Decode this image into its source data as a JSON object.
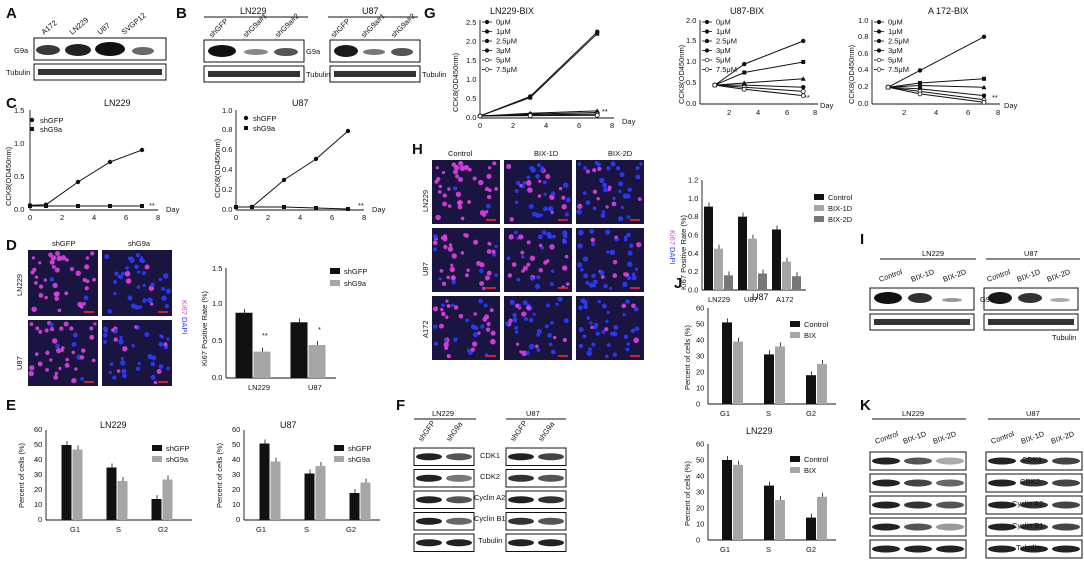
{
  "panel_labels": [
    "A",
    "B",
    "C",
    "D",
    "E",
    "F",
    "G",
    "H",
    "I",
    "J",
    "K"
  ],
  "common": {
    "tubulin": "Tubulin",
    "g9a": "G9a",
    "ki67": "Ki67",
    "dapi": "DAPI",
    "day": "Day"
  },
  "colors": {
    "black": "#111111",
    "gray": "#a6a6a6",
    "dapi_blue": "#2a3cff",
    "ki67_magenta": "#e040e0",
    "field_bg": "#1a1440"
  },
  "panel_a": {
    "cell_lines": [
      "A172",
      "LN229",
      "U87",
      "SVGP12"
    ]
  },
  "panel_b": {
    "groups": [
      {
        "title": "LN229",
        "lanes": [
          "shGFP",
          "shG9a#1",
          "shG9a#2"
        ]
      },
      {
        "title": "U87",
        "lanes": [
          "shGFP",
          "shG9a#1",
          "shG9a#2"
        ]
      }
    ]
  },
  "panel_c": {
    "ylabel": "CCK8(OD450nm)",
    "legend": [
      "shGFP",
      "shG9a"
    ],
    "charts": [
      {
        "title": "LN229",
        "yticks": [
          "0.0",
          "0.5",
          "1.0",
          "1.5"
        ],
        "xticks": [
          "0",
          "2",
          "4",
          "6",
          "8"
        ],
        "sig": "**"
      },
      {
        "title": "U87",
        "yticks": [
          "0.0",
          "0.2",
          "0.4",
          "0.6",
          "0.8",
          "1.0"
        ],
        "xticks": [
          "0",
          "2",
          "4",
          "6",
          "8"
        ],
        "sig": "**"
      }
    ]
  },
  "panel_d": {
    "columns": [
      "shGFP",
      "shG9a"
    ],
    "rows": [
      "LN229",
      "U87"
    ],
    "ylabel": "Ki67 Positive Rate (%)",
    "legend": [
      "shGFP",
      "shG9a"
    ],
    "categories": [
      "LN229",
      "U87"
    ],
    "yticks": [
      "0.0",
      "0.5",
      "1.0",
      "1.5"
    ],
    "sig": [
      "**",
      "*"
    ]
  },
  "panel_e": {
    "ylabel": "Percent of cells (%)",
    "legend": [
      "shGFP",
      "shG9a"
    ],
    "categories": [
      "G1",
      "S",
      "G2"
    ],
    "yticks": [
      "0",
      "10",
      "20",
      "30",
      "40",
      "50",
      "60"
    ],
    "charts": [
      {
        "title": "LN229"
      },
      {
        "title": "U87"
      }
    ]
  },
  "panel_f": {
    "groups": [
      {
        "title": "LN229",
        "lanes": [
          "shGFP",
          "shG9a"
        ]
      },
      {
        "title": "U87",
        "lanes": [
          "shGFP",
          "shG9a"
        ]
      }
    ],
    "proteins": [
      "CDK1",
      "CDK2",
      "Cyclin A2",
      "Cyclin B1",
      "Tubulin"
    ]
  },
  "panel_g": {
    "ylabel": "CCK8(OD450nm)",
    "legend": [
      "0μM",
      "1μM",
      "2.5μM",
      "3μM",
      "5μM",
      "7.5μM"
    ],
    "charts": [
      {
        "title": "LN229-BIX",
        "yticks": [
          "0.0",
          "0.5",
          "1.0",
          "1.5",
          "2.0",
          "2.5"
        ],
        "xticks": [
          "0",
          "2",
          "4",
          "6",
          "8"
        ],
        "sig": "**"
      },
      {
        "title": "U87-BIX",
        "yticks": [
          "0.0",
          "0.5",
          "1.0",
          "1.5",
          "2.0"
        ],
        "xticks": [
          "2",
          "4",
          "6",
          "8"
        ],
        "sig": "**"
      },
      {
        "title": "A 172-BIX",
        "yticks": [
          "0.0",
          "0.2",
          "0.4",
          "0.6",
          "0.8",
          "1.0"
        ],
        "xticks": [
          "2",
          "4",
          "6",
          "8"
        ],
        "sig": "**"
      }
    ]
  },
  "panel_h": {
    "columns": [
      "Control",
      "BIX-1D",
      "BIX-2D"
    ],
    "rows": [
      "LN229",
      "U87",
      "A172"
    ],
    "ylabel": "Ki67 Positive Rate (%)",
    "legend": [
      "Control",
      "BIX-1D",
      "BIX-2D"
    ],
    "categories": [
      "LN229",
      "U87",
      "A172"
    ],
    "yticks": [
      "0.0",
      "0.2",
      "0.4",
      "0.6",
      "0.8",
      "1.0",
      "1.2"
    ]
  },
  "panel_i": {
    "groups": [
      {
        "title": "LN229",
        "lanes": [
          "Control",
          "BIX-1D",
          "BIX-2D"
        ]
      },
      {
        "title": "U87",
        "lanes": [
          "Control",
          "BIX-1D",
          "BIX-2D"
        ]
      }
    ]
  },
  "panel_j": {
    "ylabel": "Percent of cells (%)",
    "legend": [
      "Control",
      "BIX"
    ],
    "categories": [
      "G1",
      "S",
      "G2"
    ],
    "yticks": [
      "0",
      "10",
      "20",
      "30",
      "40",
      "50",
      "60"
    ],
    "charts": [
      {
        "title": "U87"
      },
      {
        "title": "LN229"
      }
    ]
  },
  "panel_k": {
    "groups": [
      {
        "title": "LN229",
        "lanes": [
          "Control",
          "BIX-1D",
          "BIX-2D"
        ]
      },
      {
        "title": "U87",
        "lanes": [
          "Control",
          "BIX-1D",
          "BIX-2D"
        ]
      }
    ],
    "proteins": [
      "CDK1",
      "CDK2",
      "Cyclin A2",
      "Cyclin B1",
      "Tubulin"
    ]
  },
  "chart_data": [
    {
      "id": "C-LN229",
      "type": "line",
      "title": "LN229",
      "xlabel": "Day",
      "ylabel": "CCK8(OD450nm)",
      "xlim": [
        0,
        8
      ],
      "ylim": [
        0,
        1.5
      ],
      "series": [
        {
          "name": "shGFP",
          "x": [
            0,
            1,
            3,
            5,
            7
          ],
          "y": [
            0.07,
            0.08,
            0.42,
            0.72,
            0.9
          ]
        },
        {
          "name": "shG9a",
          "x": [
            0,
            1,
            3,
            5,
            7
          ],
          "y": [
            0.06,
            0.06,
            0.06,
            0.06,
            0.06
          ]
        }
      ]
    },
    {
      "id": "C-U87",
      "type": "line",
      "title": "U87",
      "xlabel": "Day",
      "ylabel": "CCK8(OD450nm)",
      "xlim": [
        0,
        8
      ],
      "ylim": [
        0,
        1.0
      ],
      "series": [
        {
          "name": "shGFP",
          "x": [
            0,
            1,
            3,
            5,
            7
          ],
          "y": [
            0.03,
            0.03,
            0.3,
            0.51,
            0.79
          ]
        },
        {
          "name": "shG9a",
          "x": [
            0,
            1,
            3,
            5,
            7
          ],
          "y": [
            0.03,
            0.03,
            0.03,
            0.02,
            0.01
          ]
        }
      ]
    },
    {
      "id": "G-LN229-BIX",
      "type": "line",
      "title": "LN229-BIX",
      "xlabel": "Day",
      "ylabel": "CCK8(OD450nm)",
      "xlim": [
        0,
        8
      ],
      "ylim": [
        0,
        2.5
      ],
      "series": [
        {
          "name": "0μM",
          "x": [
            0,
            3,
            7
          ],
          "y": [
            0.05,
            0.55,
            2.2
          ]
        },
        {
          "name": "1μM",
          "x": [
            0,
            3,
            7
          ],
          "y": [
            0.05,
            0.52,
            2.15
          ]
        },
        {
          "name": "2.5μM",
          "x": [
            0,
            3,
            7
          ],
          "y": [
            0.05,
            0.12,
            0.18
          ]
        },
        {
          "name": "3μM",
          "x": [
            0,
            3,
            7
          ],
          "y": [
            0.05,
            0.1,
            0.14
          ]
        },
        {
          "name": "5μM",
          "x": [
            0,
            3,
            7
          ],
          "y": [
            0.05,
            0.08,
            0.1
          ]
        },
        {
          "name": "7.5μM",
          "x": [
            0,
            3,
            7
          ],
          "y": [
            0.05,
            0.06,
            0.07
          ]
        }
      ]
    },
    {
      "id": "G-U87-BIX",
      "type": "line",
      "title": "U87-BIX",
      "xlabel": "Day",
      "ylabel": "CCK8(OD450nm)",
      "xlim": [
        0,
        8
      ],
      "ylim": [
        0,
        2.0
      ],
      "series": [
        {
          "name": "0μM",
          "x": [
            1,
            3,
            7
          ],
          "y": [
            0.45,
            0.95,
            1.5
          ]
        },
        {
          "name": "1μM",
          "x": [
            1,
            3,
            7
          ],
          "y": [
            0.45,
            0.75,
            1.0
          ]
        },
        {
          "name": "2.5μM",
          "x": [
            1,
            3,
            7
          ],
          "y": [
            0.45,
            0.5,
            0.6
          ]
        },
        {
          "name": "3μM",
          "x": [
            1,
            3,
            7
          ],
          "y": [
            0.45,
            0.45,
            0.4
          ]
        },
        {
          "name": "5μM",
          "x": [
            1,
            3,
            7
          ],
          "y": [
            0.45,
            0.4,
            0.3
          ]
        },
        {
          "name": "7.5μM",
          "x": [
            1,
            3,
            7
          ],
          "y": [
            0.45,
            0.35,
            0.2
          ]
        }
      ]
    },
    {
      "id": "G-A172-BIX",
      "type": "line",
      "title": "A 172-BIX",
      "xlabel": "Day",
      "ylabel": "CCK8(OD450nm)",
      "xlim": [
        0,
        8
      ],
      "ylim": [
        0,
        1.0
      ],
      "series": [
        {
          "name": "0μM",
          "x": [
            1,
            3,
            7
          ],
          "y": [
            0.2,
            0.4,
            0.8
          ]
        },
        {
          "name": "1μM",
          "x": [
            1,
            3,
            7
          ],
          "y": [
            0.2,
            0.25,
            0.3
          ]
        },
        {
          "name": "2.5μM",
          "x": [
            1,
            3,
            7
          ],
          "y": [
            0.2,
            0.22,
            0.2
          ]
        },
        {
          "name": "3μM",
          "x": [
            1,
            3,
            7
          ],
          "y": [
            0.2,
            0.18,
            0.1
          ]
        },
        {
          "name": "5μM",
          "x": [
            1,
            3,
            7
          ],
          "y": [
            0.2,
            0.15,
            0.05
          ]
        },
        {
          "name": "7.5μM",
          "x": [
            1,
            3,
            7
          ],
          "y": [
            0.2,
            0.12,
            0.02
          ]
        }
      ]
    },
    {
      "id": "D-bar",
      "type": "bar",
      "ylabel": "Ki67 Positive Rate (%)",
      "ylim": [
        0,
        1.5
      ],
      "categories": [
        "LN229",
        "U87"
      ],
      "series": [
        {
          "name": "shGFP",
          "values": [
            0.89,
            0.76
          ]
        },
        {
          "name": "shG9a",
          "values": [
            0.36,
            0.45
          ]
        }
      ]
    },
    {
      "id": "H-bar",
      "type": "bar",
      "ylabel": "Ki67 Positive Rate (%)",
      "ylim": [
        0,
        1.2
      ],
      "categories": [
        "LN229",
        "U87",
        "A172"
      ],
      "series": [
        {
          "name": "Control",
          "values": [
            0.91,
            0.8,
            0.66
          ]
        },
        {
          "name": "BIX-1D",
          "values": [
            0.45,
            0.56,
            0.31
          ]
        },
        {
          "name": "BIX-2D",
          "values": [
            0.16,
            0.18,
            0.15
          ]
        }
      ]
    },
    {
      "id": "E-LN229",
      "type": "bar",
      "title": "LN229",
      "ylabel": "Percent of cells (%)",
      "ylim": [
        0,
        60
      ],
      "categories": [
        "G1",
        "S",
        "G2"
      ],
      "series": [
        {
          "name": "shGFP",
          "values": [
            50,
            35,
            14
          ]
        },
        {
          "name": "shG9a",
          "values": [
            47,
            26,
            27
          ]
        }
      ]
    },
    {
      "id": "E-U87",
      "type": "bar",
      "title": "U87",
      "ylabel": "Percent of cells (%)",
      "ylim": [
        0,
        60
      ],
      "categories": [
        "G1",
        "S",
        "G2"
      ],
      "series": [
        {
          "name": "shGFP",
          "values": [
            51,
            31,
            18
          ]
        },
        {
          "name": "shG9a",
          "values": [
            39,
            36,
            25
          ]
        }
      ]
    },
    {
      "id": "J-U87",
      "type": "bar",
      "title": "U87",
      "ylabel": "Percent of cells (%)",
      "ylim": [
        0,
        60
      ],
      "categories": [
        "G1",
        "S",
        "G2"
      ],
      "series": [
        {
          "name": "Control",
          "values": [
            51,
            31,
            18
          ]
        },
        {
          "name": "BIX",
          "values": [
            39,
            36,
            25
          ]
        }
      ]
    },
    {
      "id": "J-LN229",
      "type": "bar",
      "title": "LN229",
      "ylabel": "Percent of cells (%)",
      "ylim": [
        0,
        60
      ],
      "categories": [
        "G1",
        "S",
        "G2"
      ],
      "series": [
        {
          "name": "Control",
          "values": [
            50,
            34,
            14
          ]
        },
        {
          "name": "BIX",
          "values": [
            47,
            25,
            27
          ]
        }
      ]
    }
  ]
}
